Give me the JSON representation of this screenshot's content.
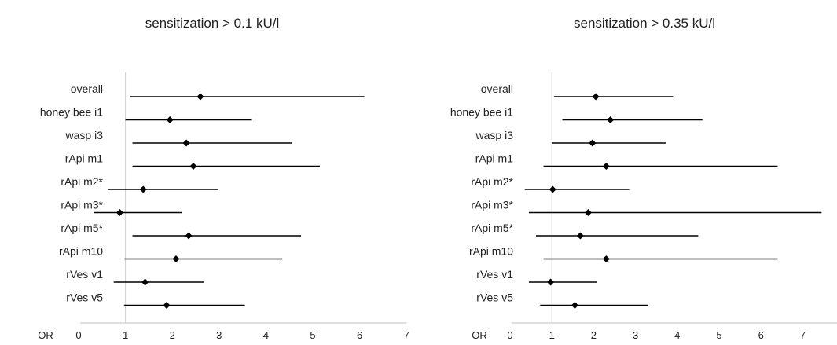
{
  "chart_data": [
    {
      "type": "forest",
      "title": "sensitization > 0.1 kU/l",
      "x_axis_label": "OR",
      "xlim": [
        0,
        7
      ],
      "x_ticks": [
        "0",
        "1",
        "2",
        "3",
        "4",
        "5",
        "6",
        "7"
      ],
      "reference_line": 1,
      "categories": [
        "overall",
        "honey bee i1",
        "wasp i3",
        "rApi m1",
        "rApi m2*",
        "rApi m3*",
        "rApi m5*",
        "rApi m10",
        "rVes v1",
        "rVes v5"
      ],
      "or": [
        2.6,
        1.95,
        2.3,
        2.45,
        1.38,
        0.88,
        2.35,
        2.08,
        1.42,
        1.88
      ],
      "ci_low": [
        1.1,
        1.0,
        1.15,
        1.15,
        0.62,
        0.33,
        1.15,
        0.98,
        0.75,
        0.97
      ],
      "ci_high": [
        6.1,
        3.7,
        4.55,
        5.15,
        2.98,
        2.2,
        4.75,
        4.35,
        2.68,
        3.55
      ]
    },
    {
      "type": "forest",
      "title": "sensitization > 0.35 kU/l",
      "x_axis_label": "OR",
      "xlim": [
        0,
        8
      ],
      "x_ticks": [
        "0",
        "1",
        "2",
        "3",
        "4",
        "5",
        "6",
        "7",
        "8"
      ],
      "reference_line": 1,
      "categories": [
        "overall",
        "honey bee i1",
        "wasp i3",
        "rApi m1",
        "rApi m2*",
        "rApi m3*",
        "rApi m5*",
        "rApi m10",
        "rVes v1",
        "rVes v5"
      ],
      "or": [
        2.05,
        2.4,
        1.97,
        2.3,
        1.02,
        1.87,
        1.68,
        2.3,
        0.97,
        1.55
      ],
      "ci_low": [
        1.05,
        1.25,
        1.0,
        0.8,
        0.35,
        0.45,
        0.62,
        0.8,
        0.45,
        0.72
      ],
      "ci_high": [
        3.9,
        4.6,
        3.72,
        6.4,
        2.85,
        7.45,
        4.5,
        6.4,
        2.08,
        3.3
      ]
    }
  ]
}
